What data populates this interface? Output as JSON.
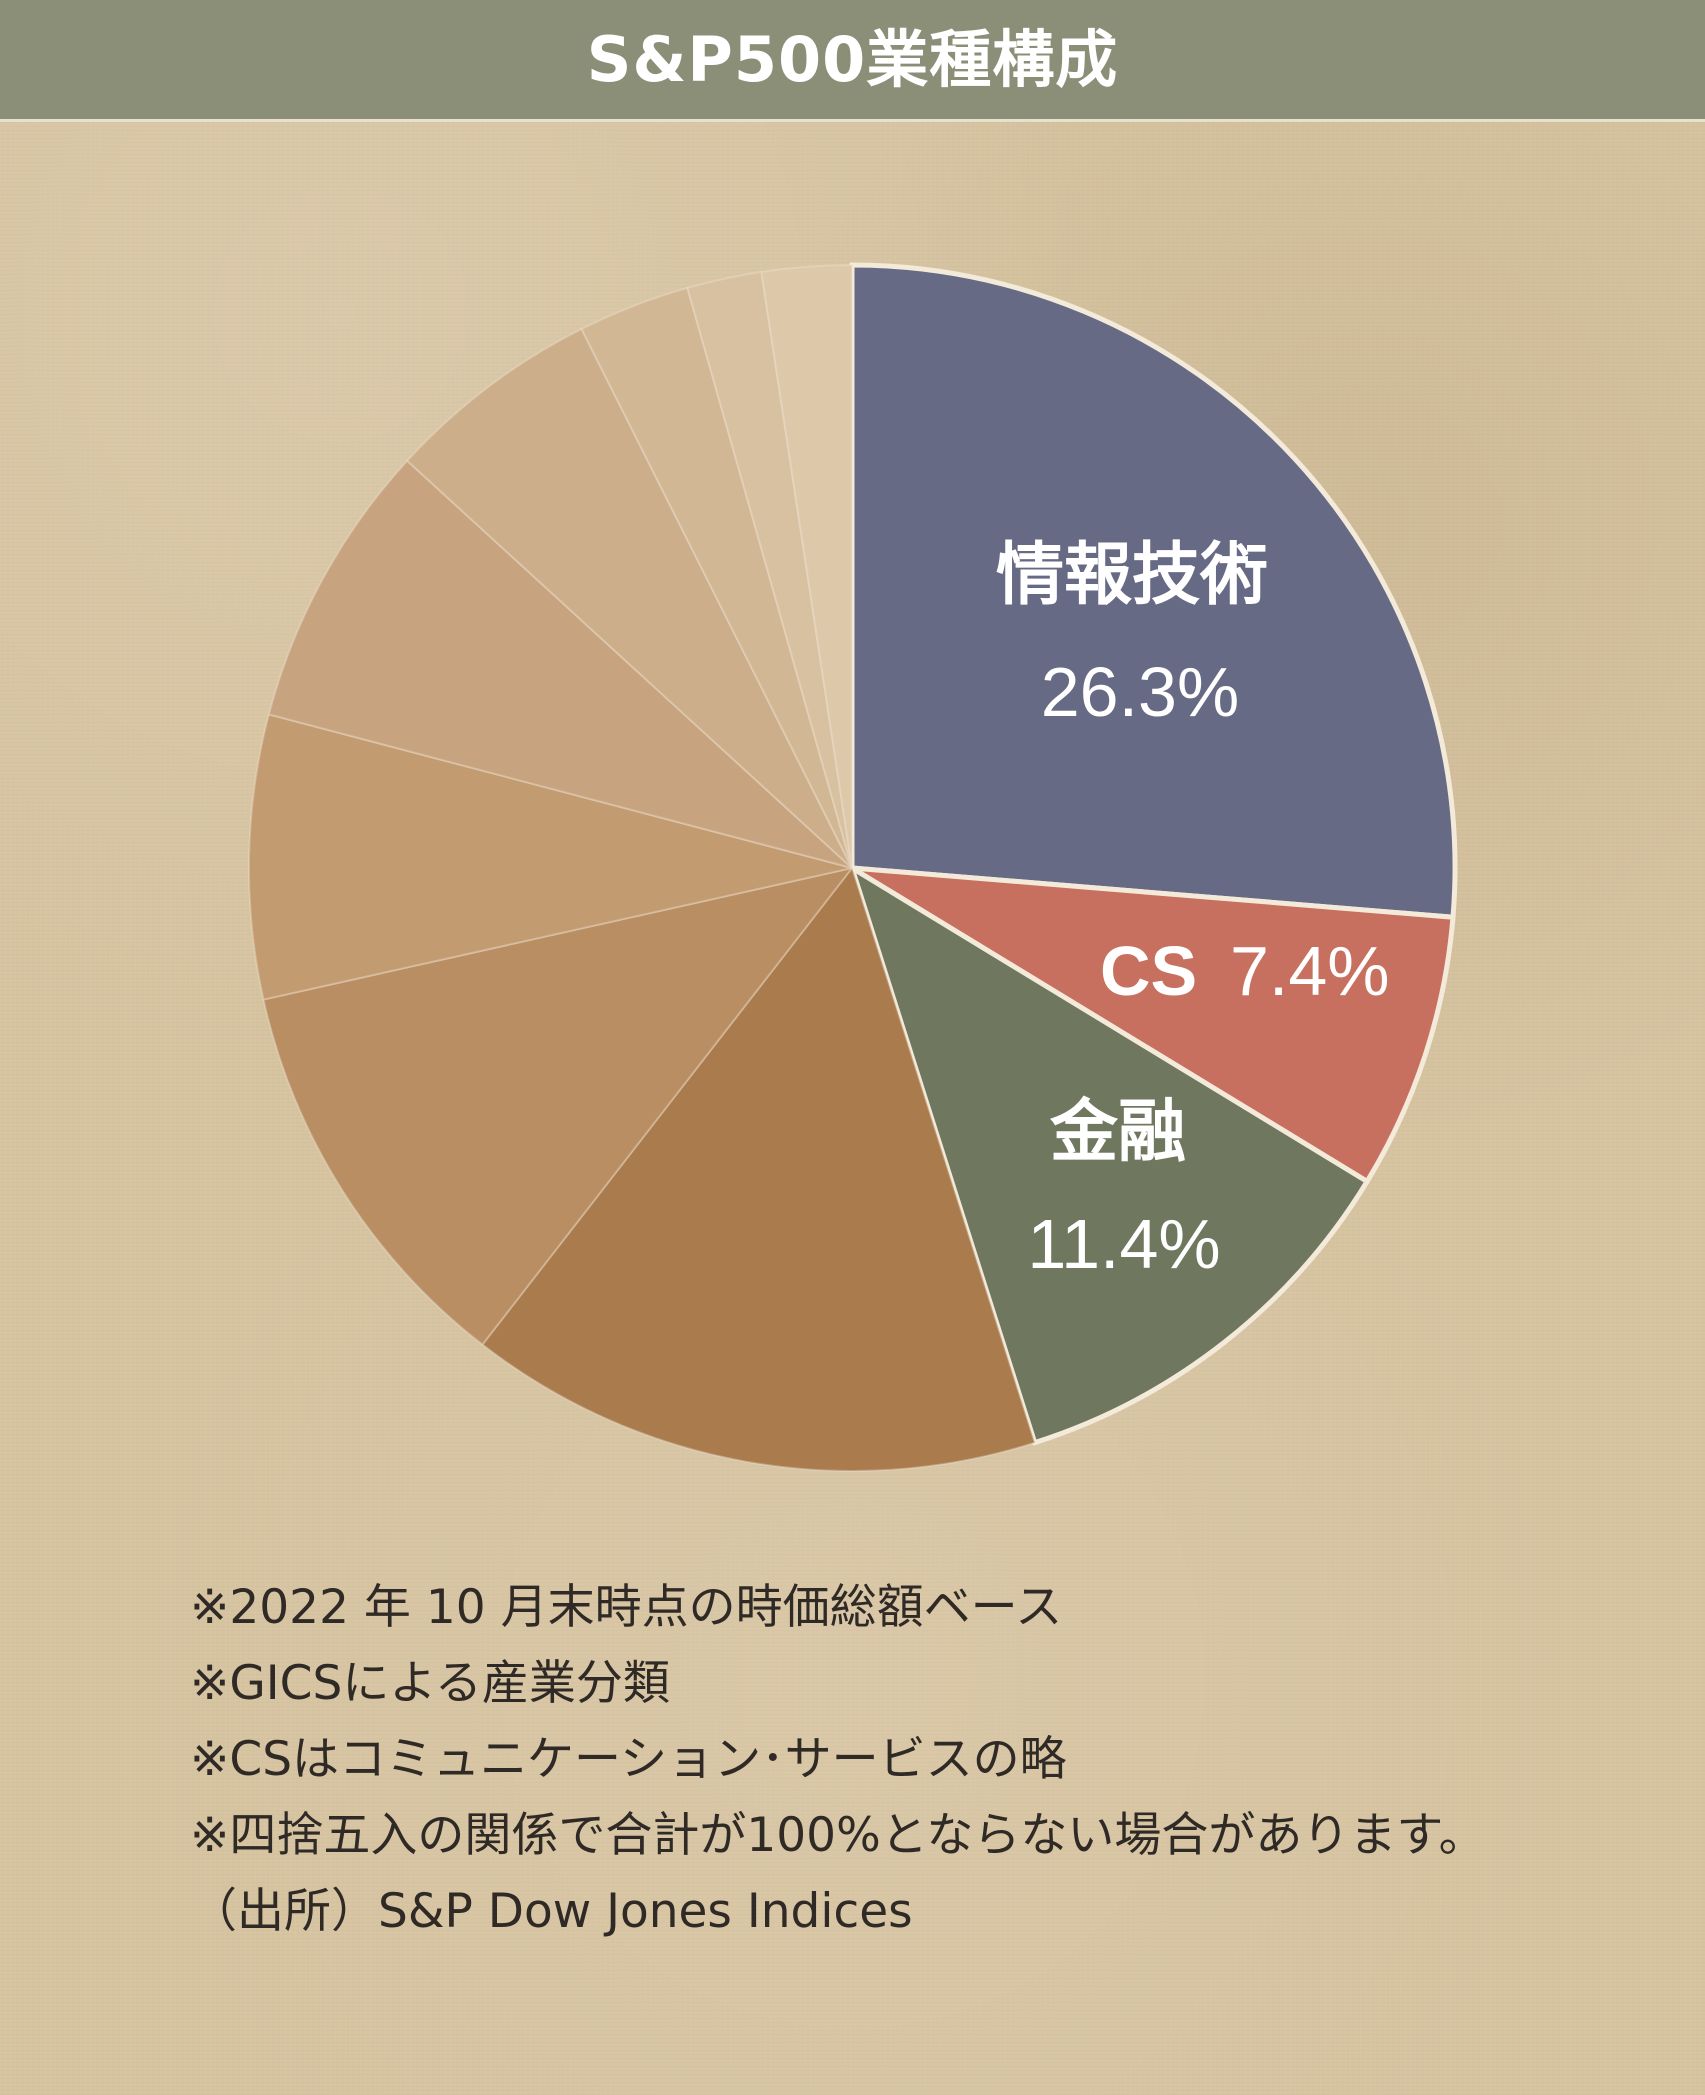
{
  "title": "S&P500業種構成",
  "colors": {
    "header_bg": "#8c8f78",
    "paper_bg": "#d6c3a0",
    "it": "#676a85",
    "cs": "#c8705f",
    "finance": "#6f775f",
    "other_1": "#a97b4d",
    "other_2": "#b98e62",
    "other_3": "#c29b70",
    "other_4": "#c7a47f",
    "other_5": "#ccae8a",
    "other_6": "#d2b795",
    "other_7": "#d8c1a0",
    "other_8": "#ddc8aa",
    "label_text": "#ffffff"
  },
  "chart_data": {
    "type": "pie",
    "start_angle_deg": -90,
    "clockwise": true,
    "slices": [
      {
        "name": "情報技術",
        "value": 26.3,
        "label_name": "情報技術",
        "label_value": "26.3%",
        "color_key": "it"
      },
      {
        "name": "CS",
        "value": 7.4,
        "label_name": "CS",
        "label_value": "7.4%",
        "color_key": "cs"
      },
      {
        "name": "金融",
        "value": 11.4,
        "label_name": "金融",
        "label_value": "11.4%",
        "color_key": "finance"
      },
      {
        "name": "",
        "value": 15.4,
        "label_name": "",
        "label_value": "",
        "color_key": "other_1"
      },
      {
        "name": "",
        "value": 11.0,
        "label_name": "",
        "label_value": "",
        "color_key": "other_2"
      },
      {
        "name": "",
        "value": 7.6,
        "label_name": "",
        "label_value": "",
        "color_key": "other_3"
      },
      {
        "name": "",
        "value": 7.7,
        "label_name": "",
        "label_value": "",
        "color_key": "other_4"
      },
      {
        "name": "",
        "value": 5.8,
        "label_name": "",
        "label_value": "",
        "color_key": "other_5"
      },
      {
        "name": "",
        "value": 3.0,
        "label_name": "",
        "label_value": "",
        "color_key": "other_6"
      },
      {
        "name": "",
        "value": 2.0,
        "label_name": "",
        "label_value": "",
        "color_key": "other_7"
      },
      {
        "name": "",
        "value": 2.4,
        "label_name": "",
        "label_value": "",
        "color_key": "other_8"
      }
    ]
  },
  "notes": [
    "※2022 年 10 月末時点の時価総額ベース",
    "※GICSによる産業分類",
    "※CSはコミュニケーション･サービスの略",
    "※四捨五入の関係で合計が100%とならない場合があります。",
    "（出所）S&P Dow Jones Indices"
  ]
}
